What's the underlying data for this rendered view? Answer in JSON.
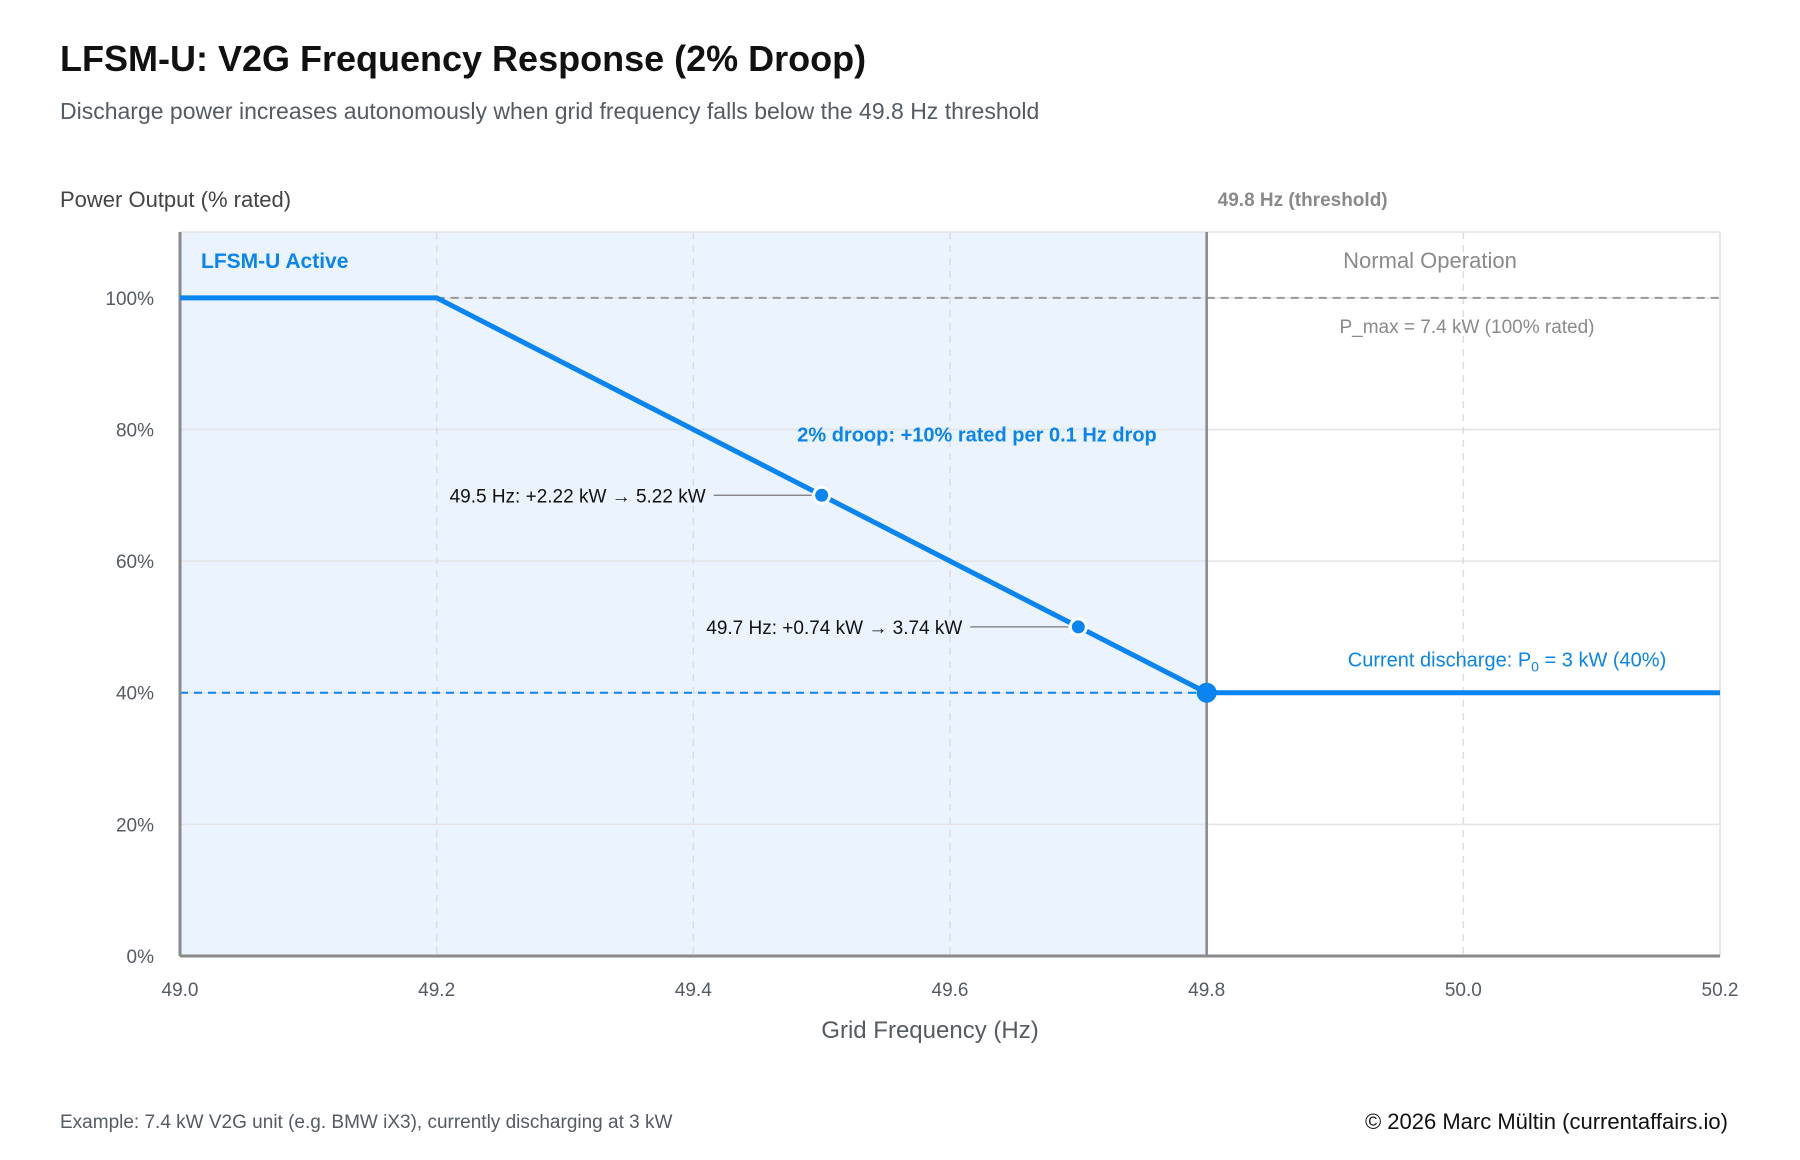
{
  "header": {
    "title": "LFSM-U: V2G Frequency Response (2% Droop)",
    "subtitle": "Discharge power increases autonomously when grid frequency falls below the 49.8 Hz threshold"
  },
  "footer": {
    "note": "Example: 7.4 kW V2G unit (e.g. BMW iX3), currently discharging at 3 kW",
    "copyright": "© 2026 Marc Mültin (currentaffairs.io)"
  },
  "colors": {
    "accent": "#0a84f0",
    "active_region": "#eaf3fe",
    "axis": "#8a8a8a",
    "grid": "#e4e4e4",
    "muted_text": "#8a8a8a"
  },
  "chart_data": {
    "type": "line",
    "title": "LFSM-U: V2G Frequency Response (2% Droop)",
    "xlabel": "Grid Frequency (Hz)",
    "ylabel": "Power Output (% rated)",
    "xlim": [
      49.0,
      50.2
    ],
    "ylim": [
      0,
      110
    ],
    "x_ticks": [
      49.0,
      49.2,
      49.4,
      49.6,
      49.8,
      50.0,
      50.2
    ],
    "x_tick_labels": [
      "49.0",
      "49.2",
      "49.4",
      "49.6",
      "49.8",
      "50.0",
      "50.2"
    ],
    "y_ticks": [
      0,
      20,
      40,
      60,
      80,
      100
    ],
    "y_tick_labels": [
      "0%",
      "20%",
      "40%",
      "60%",
      "80%",
      "100%"
    ],
    "grid": true,
    "series": [
      {
        "name": "Power output",
        "x": [
          49.0,
          49.2,
          49.8,
          50.2
        ],
        "y": [
          100,
          100,
          40,
          40
        ]
      }
    ],
    "regions": [
      {
        "name": "LFSM-U Active",
        "x_from": 49.0,
        "x_to": 49.8
      },
      {
        "name": "Normal Operation",
        "x_from": 49.8,
        "x_to": 50.2
      }
    ],
    "threshold": {
      "x": 49.8,
      "label": "49.8 Hz (threshold)"
    },
    "reference_lines": [
      {
        "y": 100,
        "x_from": 49.2,
        "x_to": 50.2,
        "label": "P_max = 7.4 kW (100% rated)"
      },
      {
        "y": 40,
        "x_from": 49.0,
        "x_to": 49.8,
        "label": ""
      }
    ],
    "points": [
      {
        "x": 49.5,
        "y": 70,
        "label": "49.5 Hz: +2.22 kW → 5.22 kW"
      },
      {
        "x": 49.7,
        "y": 50,
        "label": "49.7 Hz: +0.74 kW → 3.74 kW"
      }
    ],
    "current_point": {
      "x": 49.8,
      "y": 40,
      "label_prefix": "Current discharge: P",
      "label_sub": "0",
      "label_suffix": " = 3 kW (40%)"
    },
    "annotations": {
      "droop": "2% droop: +10% rated per 0.1 Hz drop",
      "active_region": "LFSM-U Active",
      "normal_region": "Normal Operation"
    }
  }
}
